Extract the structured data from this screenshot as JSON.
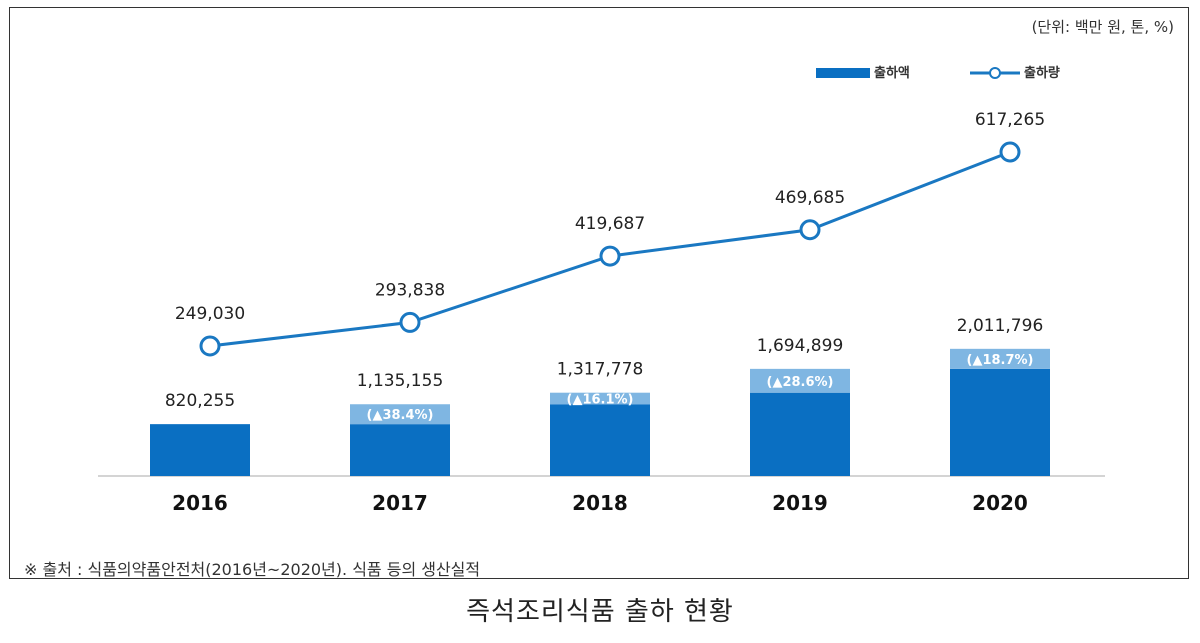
{
  "unit_note": "(단위: 백만 원, 톤, %)",
  "source_note": "※ 출처 : 식품의약품안전처(2016년~2020년). 식품 등의 생산실적",
  "caption": "즉석조리식품 출하 현황",
  "legend": {
    "bar_label": "출하액",
    "line_label": "출하량"
  },
  "colors": {
    "bar": "#0a6fc2",
    "bar_increase": "#7fb6e2",
    "line": "#1a78c2",
    "axis": "#aaaaaa"
  },
  "chart_data": {
    "type": "bar+line",
    "categories": [
      "2016",
      "2017",
      "2018",
      "2019",
      "2020"
    ],
    "series": [
      {
        "name": "출하액",
        "type": "bar",
        "values": [
          820255,
          1135155,
          1317778,
          1694899,
          2011796
        ],
        "value_labels": [
          "820,255",
          "1,135,155",
          "1,317,778",
          "1,694,899",
          "2,011,796"
        ],
        "growth_labels": [
          "",
          "(▲38.4%)",
          "(▲16.1%)",
          "(▲28.6%)",
          "(▲18.7%)"
        ]
      },
      {
        "name": "출하량",
        "type": "line",
        "values": [
          249030,
          293838,
          419687,
          469685,
          617265
        ],
        "value_labels": [
          "249,030",
          "293,838",
          "419,687",
          "469,685",
          "617,265"
        ]
      }
    ]
  }
}
